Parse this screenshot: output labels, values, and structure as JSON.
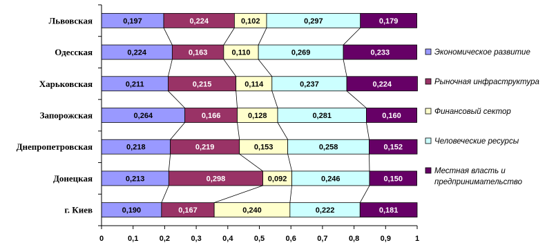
{
  "chart_data": {
    "type": "bar",
    "orientation": "horizontal",
    "stacked": "percent",
    "title": "",
    "xlabel": "",
    "ylabel": "",
    "xlim": [
      0,
      1
    ],
    "xticks": [
      "0",
      "0,1",
      "0,2",
      "0,3",
      "0,4",
      "0,5",
      "0,6",
      "0,7",
      "0,8",
      "0,9",
      "1"
    ],
    "grid": false,
    "series_lines": true,
    "legend_position": "right",
    "categories": [
      "Львовская",
      "Одесская",
      "Харьковская",
      "Запорожская",
      "Днепропетровская",
      "Донецкая",
      "г. Киев"
    ],
    "series": [
      {
        "name": "Экономическое развитие",
        "color": "#9999FF",
        "text_color": "#000000",
        "values": [
          0.197,
          0.224,
          0.211,
          0.264,
          0.218,
          0.213,
          0.19
        ],
        "labels": [
          "0,197",
          "0,224",
          "0,211",
          "0,264",
          "0,218",
          "0,213",
          "0,190"
        ]
      },
      {
        "name": "Рыночная инфраструктура",
        "color": "#993366",
        "text_color": "#FFFFFF",
        "values": [
          0.224,
          0.163,
          0.215,
          0.166,
          0.219,
          0.298,
          0.167
        ],
        "labels": [
          "0,224",
          "0,163",
          "0,215",
          "0,166",
          "0,219",
          "0,298",
          "0,167"
        ]
      },
      {
        "name": "Финансовый сектор",
        "color": "#FFFFCC",
        "text_color": "#000000",
        "values": [
          0.102,
          0.11,
          0.114,
          0.128,
          0.153,
          0.092,
          0.24
        ],
        "labels": [
          "0,102",
          "0,110",
          "0,114",
          "0,128",
          "0,153",
          "0,092",
          "0,240"
        ]
      },
      {
        "name": "Человеческие ресурсы",
        "color": "#CCFFFF",
        "text_color": "#000000",
        "values": [
          0.297,
          0.269,
          0.237,
          0.281,
          0.258,
          0.246,
          0.222
        ],
        "labels": [
          "0,297",
          "0,269",
          "0,237",
          "0,281",
          "0,258",
          "0,246",
          "0,222"
        ]
      },
      {
        "name": "Местная власть и предпринимательство",
        "color": "#660066",
        "text_color": "#FFFFFF",
        "values": [
          0.179,
          0.233,
          0.224,
          0.16,
          0.152,
          0.15,
          0.181
        ],
        "labels": [
          "0,179",
          "0,233",
          "0,224",
          "0,160",
          "0,152",
          "0,150",
          "0,181"
        ],
        "legend_lines": [
          "Местная власть и",
          "предпринимательство"
        ]
      }
    ]
  }
}
